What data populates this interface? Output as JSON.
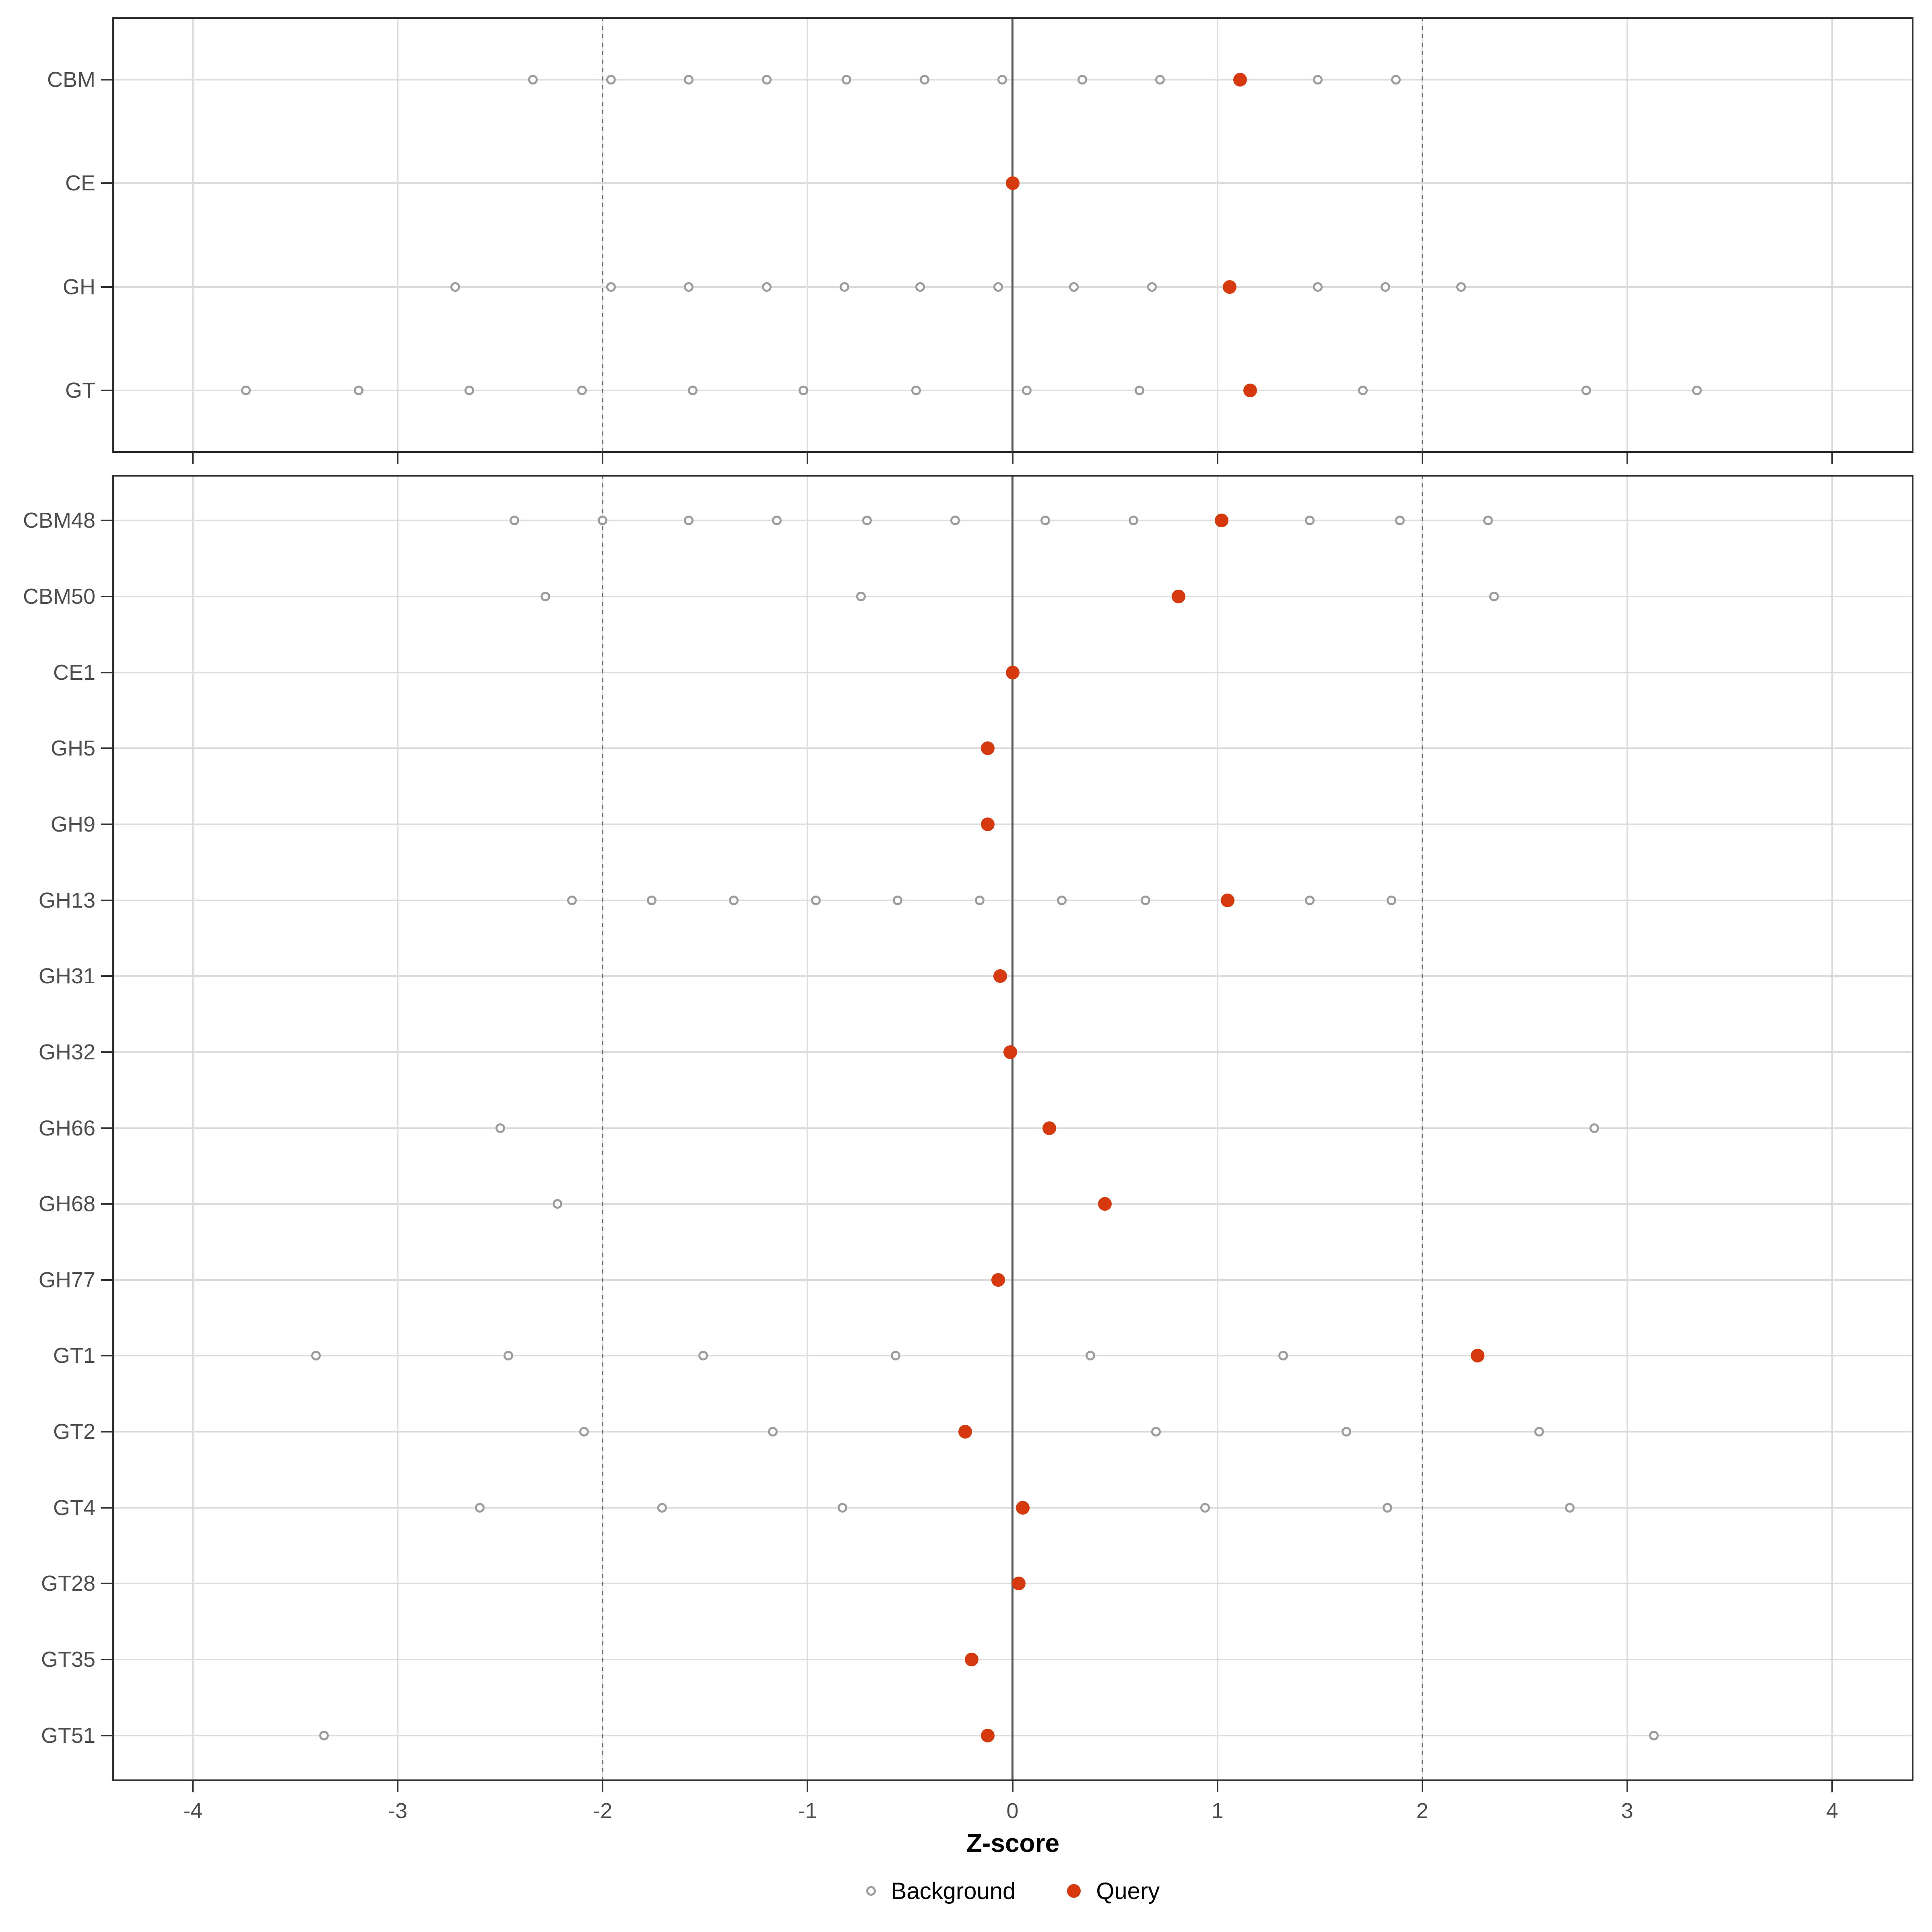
{
  "chart_data": {
    "type": "scatter",
    "title": "",
    "xlabel": "Z-score",
    "x_ticks": [
      -4,
      -3,
      -2,
      -1,
      0,
      1,
      2,
      3,
      4
    ],
    "xlim": [
      -4.39,
      4.4
    ],
    "grid": "major vertical lines at integer z-scores and one horizontal line per category row",
    "legend_position": "bottom",
    "legend": [
      "Background",
      "Query"
    ],
    "reference_lines": {
      "solid_at": 0,
      "dotted_at": [
        -2,
        2
      ]
    },
    "panels": [
      {
        "name": "top-panel",
        "rows": [
          {
            "label": "CBM",
            "background": [
              -2.34,
              -1.96,
              -1.58,
              -1.2,
              -0.81,
              -0.43,
              -0.05,
              0.34,
              0.72,
              1.49,
              1.87
            ],
            "query": 1.11
          },
          {
            "label": "CE",
            "background": [],
            "query": 0.0
          },
          {
            "label": "GH",
            "background": [
              -2.72,
              -1.96,
              -1.58,
              -1.2,
              -0.82,
              -0.45,
              -0.07,
              0.3,
              0.68,
              1.49,
              1.82,
              2.19
            ],
            "query": 1.06
          },
          {
            "label": "GT",
            "background": [
              -3.74,
              -3.19,
              -2.65,
              -2.1,
              -1.56,
              -1.02,
              -0.47,
              0.07,
              0.62,
              1.71,
              2.8,
              3.34
            ],
            "query": 1.16
          }
        ]
      },
      {
        "name": "bottom-panel",
        "rows": [
          {
            "label": "CBM48",
            "background": [
              -2.43,
              -2.0,
              -1.58,
              -1.15,
              -0.71,
              -0.28,
              0.16,
              0.59,
              1.45,
              1.89,
              2.32
            ],
            "query": 1.02
          },
          {
            "label": "CBM50",
            "background": [
              -2.28,
              -0.74,
              2.35
            ],
            "query": 0.81
          },
          {
            "label": "CE1",
            "background": [],
            "query": 0.0
          },
          {
            "label": "GH5",
            "background": [],
            "query": -0.12
          },
          {
            "label": "GH9",
            "background": [],
            "query": -0.12
          },
          {
            "label": "GH13",
            "background": [
              -2.15,
              -1.76,
              -1.36,
              -0.96,
              -0.56,
              -0.16,
              0.24,
              0.65,
              1.45,
              1.85
            ],
            "query": 1.05
          },
          {
            "label": "GH31",
            "background": [],
            "query": -0.06
          },
          {
            "label": "GH32",
            "background": [],
            "query": -0.01
          },
          {
            "label": "GH66",
            "background": [
              -2.5,
              2.84
            ],
            "query": 0.18
          },
          {
            "label": "GH68",
            "background": [
              -2.22
            ],
            "query": 0.45
          },
          {
            "label": "GH77",
            "background": [],
            "query": -0.07
          },
          {
            "label": "GT1",
            "background": [
              -3.4,
              -2.46,
              -1.51,
              -0.57,
              0.38,
              1.32
            ],
            "query": 2.27
          },
          {
            "label": "GT2",
            "background": [
              -2.09,
              -1.17,
              0.7,
              1.63,
              2.57
            ],
            "query": -0.23
          },
          {
            "label": "GT4",
            "background": [
              -2.6,
              -1.71,
              -0.83,
              0.94,
              1.83,
              2.72
            ],
            "query": 0.05
          },
          {
            "label": "GT28",
            "background": [],
            "query": 0.03
          },
          {
            "label": "GT35",
            "background": [],
            "query": -0.2
          },
          {
            "label": "GT51",
            "background": [
              -3.36,
              3.13
            ],
            "query": -0.12
          }
        ]
      }
    ]
  },
  "colors": {
    "background": "#FFFFFF",
    "query_point": "#D5390D",
    "background_point_stroke": "#9C9C9C",
    "background_point_fill": "#FFFFFF",
    "grid_line": "#DCDCDC",
    "zero_line": "#5B5B5B",
    "dotted_line": "#6A6A6A",
    "axis_text": "#4D4D4D",
    "axis_title": "#000000",
    "tick_mark": "#333333",
    "panel_border": "#2F2F2F"
  }
}
